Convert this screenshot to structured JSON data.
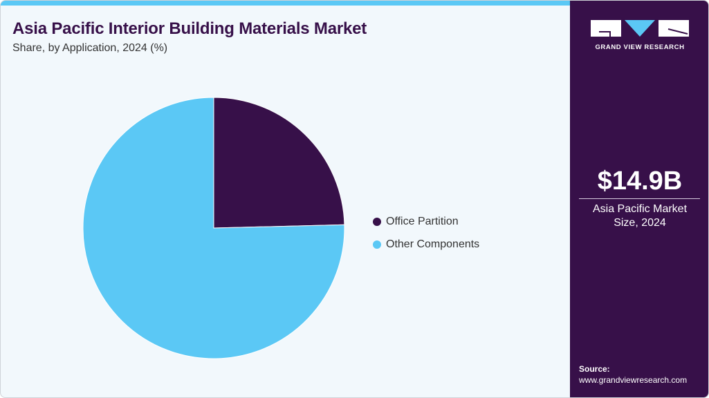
{
  "header": {
    "title": "Asia Pacific Interior Building Materials Market",
    "subtitle": "Share, by Application, 2024 (%)"
  },
  "legend": [
    {
      "label": "Office Partition",
      "color": "#371049"
    },
    {
      "label": "Other Components",
      "color": "#5bc8f5"
    }
  ],
  "sidebar": {
    "brand": "GRAND VIEW RESEARCH",
    "market_value": "$14.9B",
    "market_label_line1": "Asia Pacific Market",
    "market_label_line2": "Size, 2024",
    "source_label": "Source:",
    "source_url": "www.grandviewresearch.com"
  },
  "colors": {
    "accent": "#5bc8f5",
    "brand": "#371049",
    "background": "#f2f8fc"
  },
  "chart_data": {
    "type": "pie",
    "title": "Asia Pacific Interior Building Materials Market",
    "subtitle": "Share, by Application, 2024 (%)",
    "categories": [
      "Office Partition",
      "Other Components"
    ],
    "values": [
      24.6,
      75.4
    ],
    "colors": [
      "#371049",
      "#5bc8f5"
    ],
    "start_angle": "12 o'clock, clockwise",
    "legend_position": "right"
  }
}
